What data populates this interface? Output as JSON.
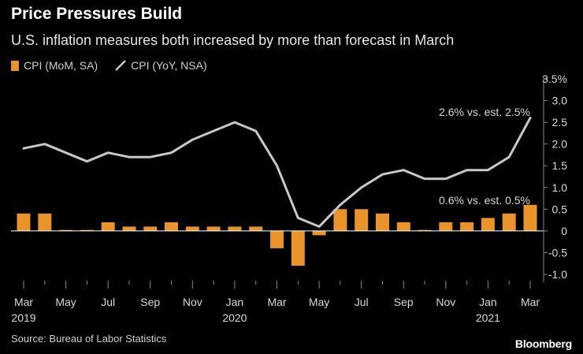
{
  "title": "Price Pressures Build",
  "subtitle": "U.S. inflation measures both increased by more than forecast in March",
  "legend": {
    "bar_label": "CPI (MoM, SA)",
    "line_label": "CPI (YoY, NSA)"
  },
  "source": "Source: Bureau of Labor Statistics",
  "brand": "Bloomberg",
  "colors": {
    "bar": "#e8942a",
    "line": "#c8c8c8",
    "axis_text": "#d9d9d9",
    "zero_line": "#ffffff"
  },
  "chart_data": {
    "type": "bar+line",
    "x": [
      "Mar 2019",
      "Apr 2019",
      "May 2019",
      "Jun 2019",
      "Jul 2019",
      "Aug 2019",
      "Sep 2019",
      "Oct 2019",
      "Nov 2019",
      "Dec 2019",
      "Jan 2020",
      "Feb 2020",
      "Mar 2020",
      "Apr 2020",
      "May 2020",
      "Jun 2020",
      "Jul 2020",
      "Aug 2020",
      "Sep 2020",
      "Oct 2020",
      "Nov 2020",
      "Dec 2020",
      "Jan 2021",
      "Feb 2021",
      "Mar 2021"
    ],
    "series": [
      {
        "name": "CPI (MoM, SA)",
        "kind": "bar",
        "values": [
          0.4,
          0.4,
          0.0,
          0.0,
          0.2,
          0.1,
          0.1,
          0.2,
          0.1,
          0.1,
          0.1,
          0.1,
          -0.4,
          -0.8,
          -0.1,
          0.5,
          0.5,
          0.4,
          0.2,
          0.0,
          0.2,
          0.2,
          0.3,
          0.4,
          0.6
        ]
      },
      {
        "name": "CPI (YoY, NSA)",
        "kind": "line",
        "values": [
          1.9,
          2.0,
          1.8,
          1.6,
          1.8,
          1.7,
          1.7,
          1.8,
          2.1,
          2.3,
          2.5,
          2.3,
          1.5,
          0.3,
          0.1,
          0.6,
          1.0,
          1.3,
          1.4,
          1.2,
          1.2,
          1.4,
          1.4,
          1.7,
          2.6
        ]
      }
    ],
    "y_ticks": [
      "3.5%",
      "3.0",
      "2.5",
      "2.0",
      "1.5",
      "1.0",
      "0.5",
      "0",
      "-0.5",
      "-1.0"
    ],
    "y_tick_values": [
      3.5,
      3.0,
      2.5,
      2.0,
      1.5,
      1.0,
      0.5,
      0,
      -0.5,
      -1.0
    ],
    "ylim": [
      -1.25,
      3.6
    ],
    "x_tick_labels": [
      {
        "index": 0,
        "month": "Mar",
        "year": "2019"
      },
      {
        "index": 2,
        "month": "May",
        "year": ""
      },
      {
        "index": 4,
        "month": "Jul",
        "year": ""
      },
      {
        "index": 6,
        "month": "Sep",
        "year": ""
      },
      {
        "index": 8,
        "month": "Nov",
        "year": ""
      },
      {
        "index": 10,
        "month": "Jan",
        "year": "2020"
      },
      {
        "index": 12,
        "month": "Mar",
        "year": ""
      },
      {
        "index": 14,
        "month": "May",
        "year": ""
      },
      {
        "index": 16,
        "month": "Jul",
        "year": ""
      },
      {
        "index": 18,
        "month": "Sep",
        "year": ""
      },
      {
        "index": 20,
        "month": "Nov",
        "year": ""
      },
      {
        "index": 22,
        "month": "Jan",
        "year": "2021"
      },
      {
        "index": 24,
        "month": "Mar",
        "year": ""
      }
    ],
    "annotations": [
      {
        "text": "2.6% vs. est. 2.5%",
        "series": "CPI (YoY, NSA)",
        "index": 24
      },
      {
        "text": "0.6% vs. est. 0.5%",
        "series": "CPI (MoM, SA)",
        "index": 24
      }
    ],
    "y_axis_side": "right",
    "grid": false
  }
}
